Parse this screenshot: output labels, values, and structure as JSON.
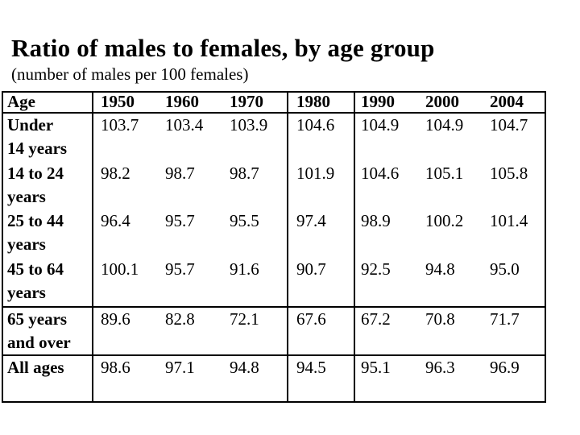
{
  "slide": {
    "title": "Ratio of males to females, by age group",
    "subtitle": "(number of males per 100 females)"
  },
  "table": {
    "header": {
      "age_label": "Age",
      "years": [
        "1950",
        "1960",
        "1970",
        "1980",
        "1990",
        "2000",
        "2004"
      ]
    },
    "rows": [
      {
        "label_line1": "Under",
        "label_line2": "14 years",
        "values": [
          "103.7",
          "103.4",
          "103.9",
          "104.6",
          "104.9",
          "104.9",
          "104.7"
        ]
      },
      {
        "label_line1": "14 to 24",
        "label_line2": "years",
        "values": [
          "98.2",
          "98.7",
          "98.7",
          "101.9",
          "104.6",
          "105.1",
          "105.8"
        ]
      },
      {
        "label_line1": "25 to 44",
        "label_line2": "years",
        "values": [
          "96.4",
          "95.7",
          "95.5",
          "97.4",
          "98.9",
          "100.2",
          "101.4"
        ]
      },
      {
        "label_line1": "45 to 64",
        "label_line2": "years",
        "values": [
          "100.1",
          "95.7",
          "91.6",
          "90.7",
          "92.5",
          "94.8",
          "95.0"
        ]
      },
      {
        "label_line1": "65 years",
        "label_line2": "and over",
        "values": [
          "89.6",
          "82.8",
          "72.1",
          "67.6",
          "67.2",
          "70.8",
          "71.7"
        ]
      },
      {
        "label_line1": "All ages",
        "label_line2": "",
        "values": [
          "98.6",
          "97.1",
          "94.8",
          "94.5",
          "95.1",
          "96.3",
          "96.9"
        ]
      }
    ]
  },
  "chart_data": {
    "type": "table",
    "title": "Ratio of males to females, by age group",
    "subtitle": "(number of males per 100 females)",
    "columns": [
      "Age",
      "1950",
      "1960",
      "1970",
      "1980",
      "1990",
      "2000",
      "2004"
    ],
    "rows": [
      [
        "Under 14 years",
        103.7,
        103.4,
        103.9,
        104.6,
        104.9,
        104.9,
        104.7
      ],
      [
        "14 to 24 years",
        98.2,
        98.7,
        98.7,
        101.9,
        104.6,
        105.1,
        105.8
      ],
      [
        "25 to 44 years",
        96.4,
        95.7,
        95.5,
        97.4,
        98.9,
        100.2,
        101.4
      ],
      [
        "45 to 64 years",
        100.1,
        95.7,
        91.6,
        90.7,
        92.5,
        94.8,
        95.0
      ],
      [
        "65 years and over",
        89.6,
        82.8,
        72.1,
        67.6,
        67.2,
        70.8,
        71.7
      ],
      [
        "All ages",
        98.6,
        97.1,
        94.8,
        94.5,
        95.1,
        96.3,
        96.9
      ]
    ],
    "layout": {
      "grid": "partial-borders",
      "legend": "none"
    }
  },
  "colors": {
    "background": "#ffffff",
    "text": "#000000",
    "border": "#000000"
  }
}
